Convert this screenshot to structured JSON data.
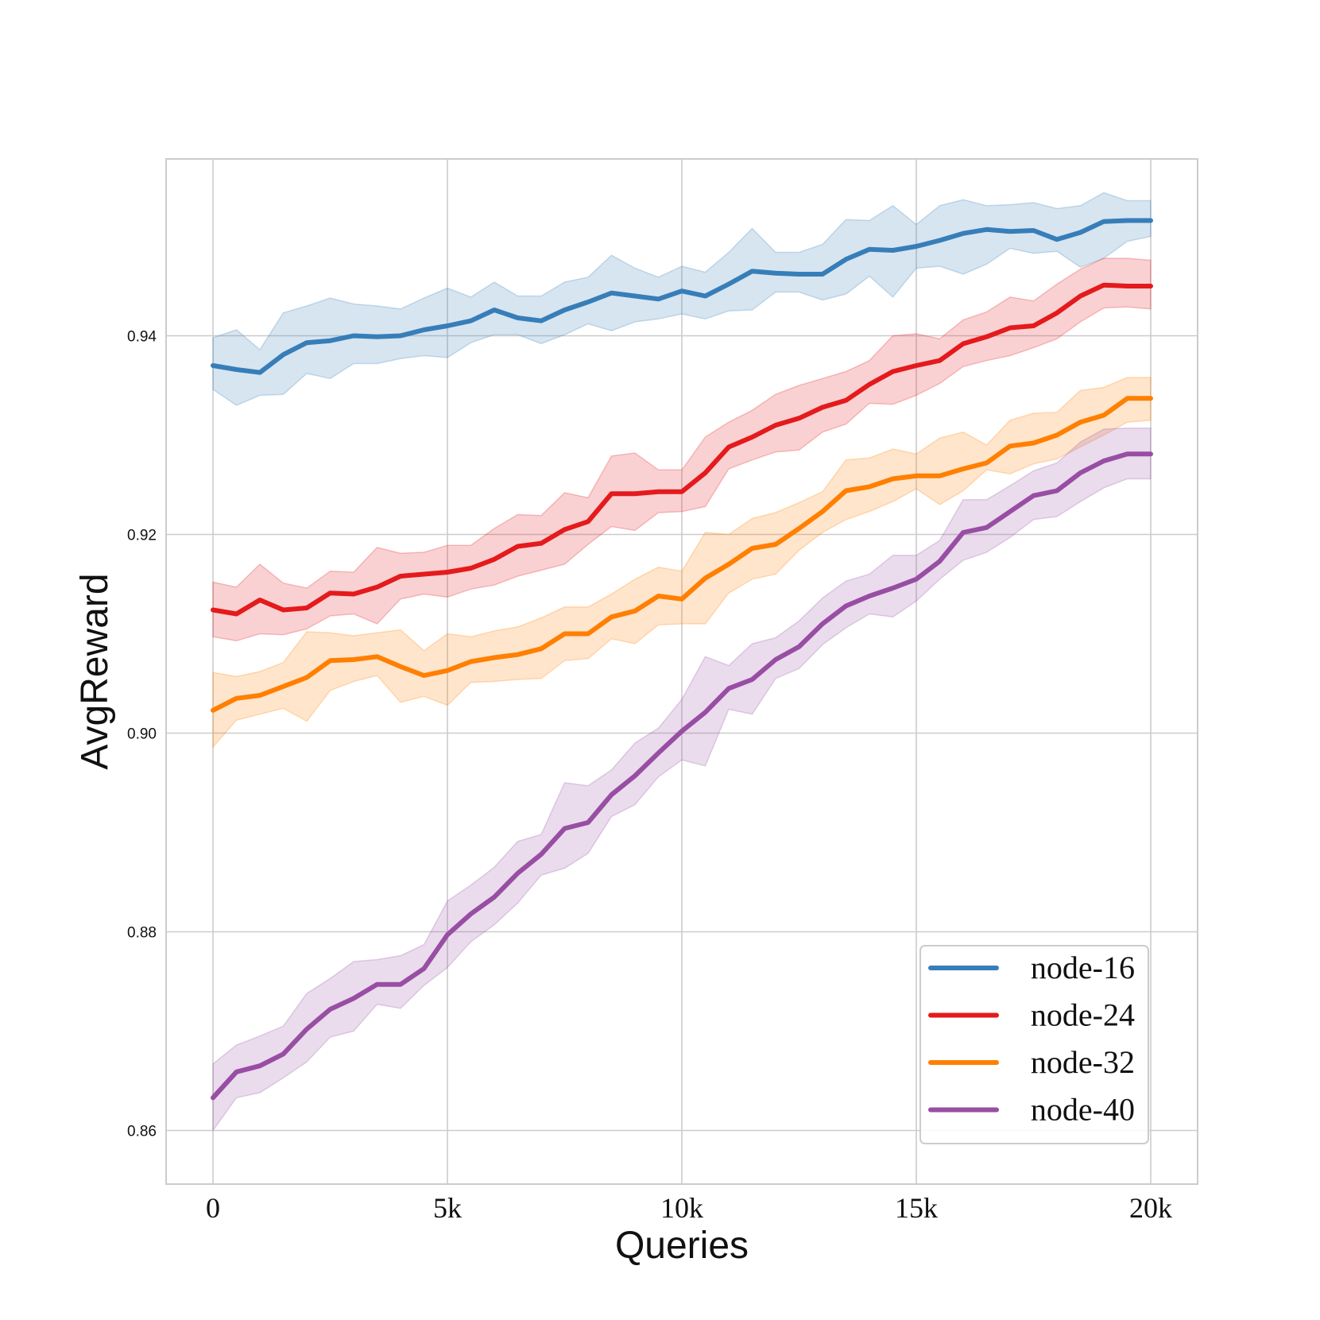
{
  "chart_data": {
    "type": "line",
    "title": "",
    "xlabel": "Queries",
    "ylabel": "AvgReward",
    "xlim": [
      -1000,
      21000
    ],
    "ylim": [
      0.8546,
      0.9578
    ],
    "grid": true,
    "legend_position": "bottom-right",
    "x_ticks": [
      {
        "value": 0,
        "label": "0"
      },
      {
        "value": 5000,
        "label": "5k"
      },
      {
        "value": 10000,
        "label": "10k"
      },
      {
        "value": 15000,
        "label": "15k"
      },
      {
        "value": 20000,
        "label": "20k"
      }
    ],
    "y_ticks": [
      {
        "value": 0.86,
        "label": "0.86"
      },
      {
        "value": 0.88,
        "label": "0.88"
      },
      {
        "value": 0.9,
        "label": "0.90"
      },
      {
        "value": 0.92,
        "label": "0.92"
      },
      {
        "value": 0.94,
        "label": "0.94"
      }
    ],
    "x": [
      0,
      500,
      1000,
      1500,
      2000,
      2500,
      3000,
      3500,
      4000,
      4500,
      5000,
      5500,
      6000,
      6500,
      7000,
      7500,
      8000,
      8500,
      9000,
      9500,
      10000,
      10500,
      11000,
      11500,
      12000,
      12500,
      13000,
      13500,
      14000,
      14500,
      15000,
      15500,
      16000,
      16500,
      17000,
      17500,
      18000,
      18500,
      19000,
      19500,
      20000
    ],
    "series": [
      {
        "name": "node-16",
        "color": "#377eb8",
        "values": [
          0.937,
          0.9366,
          0.9363,
          0.9381,
          0.9393,
          0.9395,
          0.94,
          0.9399,
          0.94,
          0.9406,
          0.941,
          0.9415,
          0.9426,
          0.9418,
          0.9415,
          0.9426,
          0.9434,
          0.9443,
          0.944,
          0.9437,
          0.9445,
          0.944,
          0.9452,
          0.9465,
          0.9463,
          0.9462,
          0.9462,
          0.9477,
          0.9487,
          0.9486,
          0.949,
          0.9496,
          0.9503,
          0.9507,
          0.9505,
          0.9506,
          0.9497,
          0.9504,
          0.9515,
          0.9516,
          0.9516
        ],
        "band_low": [
          0.9346,
          0.933,
          0.934,
          0.9341,
          0.9362,
          0.9357,
          0.9372,
          0.9372,
          0.9377,
          0.938,
          0.9378,
          0.9393,
          0.9401,
          0.9401,
          0.9392,
          0.9401,
          0.9412,
          0.9405,
          0.9414,
          0.9417,
          0.9422,
          0.9417,
          0.9425,
          0.9426,
          0.9444,
          0.9444,
          0.9436,
          0.9442,
          0.946,
          0.9439,
          0.9468,
          0.947,
          0.9462,
          0.9472,
          0.9488,
          0.9483,
          0.9485,
          0.9469,
          0.9478,
          0.9495,
          0.95
        ],
        "band_high": [
          0.9398,
          0.9406,
          0.9386,
          0.9423,
          0.943,
          0.9438,
          0.9432,
          0.943,
          0.9427,
          0.9438,
          0.9448,
          0.9439,
          0.9454,
          0.944,
          0.944,
          0.9454,
          0.9459,
          0.9481,
          0.9468,
          0.9459,
          0.947,
          0.9464,
          0.9484,
          0.9508,
          0.9484,
          0.9484,
          0.9492,
          0.9517,
          0.9516,
          0.9531,
          0.9512,
          0.9531,
          0.9537,
          0.9531,
          0.9532,
          0.9534,
          0.9528,
          0.9531,
          0.9544,
          0.9536,
          0.9536
        ]
      },
      {
        "name": "node-24",
        "color": "#e41a1c",
        "values": [
          0.9124,
          0.912,
          0.9134,
          0.9124,
          0.9126,
          0.9141,
          0.914,
          0.9147,
          0.9158,
          0.916,
          0.9162,
          0.9166,
          0.9175,
          0.9188,
          0.9191,
          0.9205,
          0.9213,
          0.9241,
          0.9241,
          0.9243,
          0.9243,
          0.9262,
          0.9288,
          0.9298,
          0.931,
          0.9317,
          0.9328,
          0.9335,
          0.9351,
          0.9364,
          0.937,
          0.9375,
          0.9392,
          0.9399,
          0.9408,
          0.941,
          0.9423,
          0.944,
          0.9451,
          0.945,
          0.945
        ],
        "band_low": [
          0.9097,
          0.9093,
          0.91,
          0.9099,
          0.9105,
          0.9118,
          0.912,
          0.911,
          0.9135,
          0.914,
          0.9137,
          0.9145,
          0.9149,
          0.9158,
          0.9164,
          0.917,
          0.919,
          0.9208,
          0.9204,
          0.9222,
          0.9223,
          0.9228,
          0.9266,
          0.9275,
          0.9283,
          0.9285,
          0.9303,
          0.9311,
          0.9332,
          0.9331,
          0.934,
          0.9352,
          0.9369,
          0.9375,
          0.938,
          0.9388,
          0.9397,
          0.9414,
          0.9428,
          0.9429,
          0.9427
        ],
        "band_high": [
          0.9152,
          0.9147,
          0.917,
          0.9151,
          0.9146,
          0.9163,
          0.9162,
          0.9187,
          0.9181,
          0.9182,
          0.9189,
          0.9189,
          0.9206,
          0.922,
          0.9219,
          0.9242,
          0.9237,
          0.9279,
          0.9282,
          0.9265,
          0.9265,
          0.9298,
          0.9313,
          0.9325,
          0.9341,
          0.935,
          0.9357,
          0.9364,
          0.9375,
          0.94,
          0.9402,
          0.9397,
          0.9416,
          0.9424,
          0.9439,
          0.9435,
          0.9452,
          0.9467,
          0.9478,
          0.9478,
          0.9476
        ]
      },
      {
        "name": "node-32",
        "color": "#ff7f00",
        "values": [
          0.9023,
          0.9035,
          0.9038,
          0.9047,
          0.9056,
          0.9073,
          0.9074,
          0.9077,
          0.9067,
          0.9058,
          0.9063,
          0.9072,
          0.9076,
          0.9079,
          0.9085,
          0.91,
          0.91,
          0.9117,
          0.9123,
          0.9138,
          0.9135,
          0.9156,
          0.917,
          0.9186,
          0.919,
          0.9206,
          0.9223,
          0.9244,
          0.9248,
          0.9256,
          0.9259,
          0.9259,
          0.9266,
          0.9272,
          0.9289,
          0.9292,
          0.93,
          0.9313,
          0.932,
          0.9337,
          0.9337
        ],
        "band_low": [
          0.8986,
          0.9013,
          0.9019,
          0.9025,
          0.9012,
          0.9043,
          0.9052,
          0.9058,
          0.9031,
          0.9037,
          0.9028,
          0.9051,
          0.9052,
          0.9054,
          0.9055,
          0.9073,
          0.9075,
          0.9095,
          0.909,
          0.9109,
          0.911,
          0.911,
          0.9141,
          0.9155,
          0.916,
          0.9184,
          0.9202,
          0.9215,
          0.9223,
          0.9233,
          0.9246,
          0.923,
          0.9244,
          0.9265,
          0.9261,
          0.9271,
          0.9276,
          0.9288,
          0.93,
          0.9313,
          0.9315
        ],
        "band_high": [
          0.9061,
          0.9057,
          0.9062,
          0.9071,
          0.9102,
          0.9101,
          0.9098,
          0.9101,
          0.9104,
          0.9083,
          0.91,
          0.9097,
          0.9103,
          0.9107,
          0.9116,
          0.9127,
          0.9127,
          0.914,
          0.9155,
          0.9167,
          0.9163,
          0.9202,
          0.92,
          0.9216,
          0.9222,
          0.9232,
          0.9243,
          0.9275,
          0.9277,
          0.9286,
          0.9281,
          0.9297,
          0.9303,
          0.929,
          0.9315,
          0.9322,
          0.9323,
          0.9345,
          0.9348,
          0.9358,
          0.9358
        ]
      },
      {
        "name": "node-40",
        "color": "#984ea3",
        "values": [
          0.8633,
          0.8659,
          0.8665,
          0.8677,
          0.8702,
          0.8722,
          0.8733,
          0.8747,
          0.8747,
          0.8763,
          0.8797,
          0.8818,
          0.8835,
          0.8859,
          0.8878,
          0.8904,
          0.891,
          0.8938,
          0.8957,
          0.898,
          0.9002,
          0.9021,
          0.9045,
          0.9054,
          0.9074,
          0.9087,
          0.911,
          0.9128,
          0.9138,
          0.9146,
          0.9155,
          0.9173,
          0.9202,
          0.9207,
          0.9223,
          0.9239,
          0.9244,
          0.9262,
          0.9274,
          0.9281,
          0.9281
        ],
        "band_low": [
          0.86,
          0.8633,
          0.8638,
          0.8653,
          0.8669,
          0.8694,
          0.87,
          0.8727,
          0.8723,
          0.8746,
          0.8764,
          0.879,
          0.8807,
          0.8829,
          0.8857,
          0.8864,
          0.8879,
          0.8916,
          0.8928,
          0.8956,
          0.8973,
          0.8967,
          0.9024,
          0.9019,
          0.9055,
          0.9065,
          0.9089,
          0.9106,
          0.912,
          0.9117,
          0.9133,
          0.9155,
          0.9174,
          0.9182,
          0.9197,
          0.9215,
          0.9218,
          0.9233,
          0.9247,
          0.9256,
          0.9256
        ],
        "band_high": [
          0.8667,
          0.8686,
          0.8695,
          0.8705,
          0.8738,
          0.8753,
          0.877,
          0.8772,
          0.8776,
          0.8787,
          0.8831,
          0.8847,
          0.8865,
          0.8891,
          0.8898,
          0.895,
          0.8947,
          0.8963,
          0.899,
          0.9005,
          0.9034,
          0.9077,
          0.9068,
          0.909,
          0.9096,
          0.9113,
          0.9136,
          0.9153,
          0.916,
          0.9179,
          0.9179,
          0.9194,
          0.9235,
          0.9235,
          0.9249,
          0.9264,
          0.9272,
          0.9293,
          0.9306,
          0.9307,
          0.9307
        ]
      }
    ]
  }
}
